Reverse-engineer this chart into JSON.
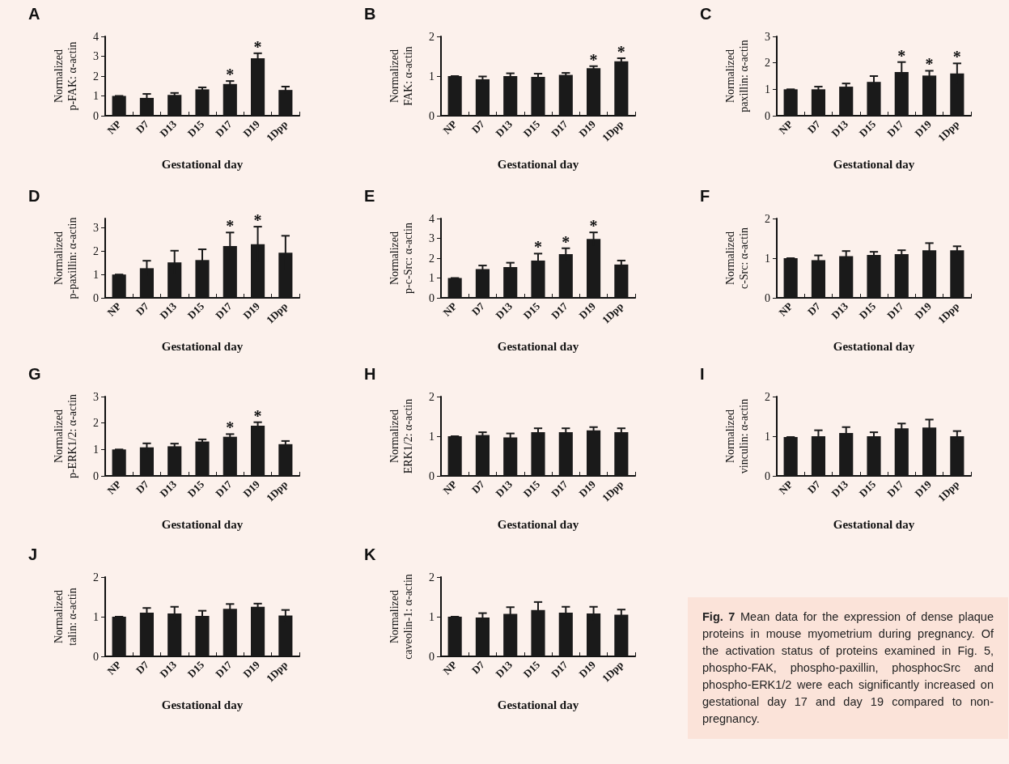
{
  "chart_data": [
    {
      "type": "bar",
      "title": "A",
      "ylabel": "Normalized\np-FAK: α-actin",
      "xlabel": "Gestational day",
      "categories": [
        "NP",
        "D7",
        "D13",
        "D15",
        "D17",
        "D19",
        "1Dpp"
      ],
      "values": [
        1,
        0.9,
        1.05,
        1.33,
        1.6,
        2.9,
        1.3
      ],
      "errors": [
        0,
        0.2,
        0.1,
        0.1,
        0.15,
        0.25,
        0.17
      ],
      "color": "#1a1a1a",
      "ylim": [
        0,
        4
      ],
      "yticks": [
        0,
        1,
        2,
        3,
        4
      ],
      "grid": false,
      "annotations": [
        {
          "text": "*",
          "x": "D17",
          "y": 1.75
        },
        {
          "text": "*",
          "x": "D19",
          "y": 3.15
        }
      ]
    },
    {
      "type": "bar",
      "title": "B",
      "ylabel": "Normalized\nFAK: α-actin",
      "xlabel": "Gestational day",
      "categories": [
        "NP",
        "D7",
        "D13",
        "D15",
        "D17",
        "D19",
        "1Dpp"
      ],
      "values": [
        1,
        0.92,
        1.0,
        0.98,
        1.03,
        1.2,
        1.37
      ],
      "errors": [
        0,
        0.07,
        0.07,
        0.08,
        0.05,
        0.05,
        0.08
      ],
      "color": "#1a1a1a",
      "ylim": [
        0,
        2
      ],
      "yticks": [
        0,
        1,
        2
      ],
      "grid": false,
      "annotations": [
        {
          "text": "*",
          "x": "D19",
          "y": 1.25
        },
        {
          "text": "*",
          "x": "1Dpp",
          "y": 1.45
        }
      ]
    },
    {
      "type": "bar",
      "title": "C",
      "ylabel": "Normalized\npaxillin: α-actin",
      "xlabel": "Gestational day",
      "categories": [
        "NP",
        "D7",
        "D13",
        "D15",
        "D17",
        "D19",
        "1Dpp"
      ],
      "values": [
        1,
        1.0,
        1.1,
        1.28,
        1.65,
        1.52,
        1.6
      ],
      "errors": [
        0,
        0.1,
        0.12,
        0.22,
        0.38,
        0.18,
        0.38
      ],
      "color": "#1a1a1a",
      "ylim": [
        0,
        3
      ],
      "yticks": [
        0,
        1,
        2,
        3
      ],
      "grid": false,
      "annotations": [
        {
          "text": "*",
          "x": "D17",
          "y": 2.03
        },
        {
          "text": "*",
          "x": "D19",
          "y": 1.7
        },
        {
          "text": "*",
          "x": "1Dpp",
          "y": 1.98
        }
      ]
    },
    {
      "type": "bar",
      "title": "D",
      "ylabel": "Normalized\np-paxillin: α-actin",
      "xlabel": "Gestational day",
      "categories": [
        "NP",
        "D7",
        "D13",
        "D15",
        "D17",
        "D19",
        "1Dpp"
      ],
      "values": [
        1,
        1.27,
        1.52,
        1.62,
        2.22,
        2.3,
        1.93
      ],
      "errors": [
        0,
        0.32,
        0.5,
        0.46,
        0.58,
        0.75,
        0.73
      ],
      "color": "#1a1a1a",
      "ylim": [
        0,
        3.4
      ],
      "yticks": [
        0,
        1,
        2,
        3
      ],
      "grid": false,
      "annotations": [
        {
          "text": "*",
          "x": "D17",
          "y": 2.8
        },
        {
          "text": "*",
          "x": "D19",
          "y": 3.05
        }
      ]
    },
    {
      "type": "bar",
      "title": "E",
      "ylabel": "Normalized\np-c-Src: α-actin",
      "xlabel": "Gestational day",
      "categories": [
        "NP",
        "D7",
        "D13",
        "D15",
        "D17",
        "D19",
        "1Dpp"
      ],
      "values": [
        1,
        1.45,
        1.55,
        1.88,
        2.2,
        2.97,
        1.68
      ],
      "errors": [
        0,
        0.18,
        0.22,
        0.35,
        0.3,
        0.33,
        0.2
      ],
      "color": "#1a1a1a",
      "ylim": [
        0,
        4
      ],
      "yticks": [
        0,
        1,
        2,
        3,
        4
      ],
      "grid": false,
      "annotations": [
        {
          "text": "*",
          "x": "D15",
          "y": 2.23
        },
        {
          "text": "*",
          "x": "D17",
          "y": 2.5
        },
        {
          "text": "*",
          "x": "D19",
          "y": 3.3
        }
      ]
    },
    {
      "type": "bar",
      "title": "F",
      "ylabel": "Normalized\nc-Src: α-actin",
      "xlabel": "Gestational day",
      "categories": [
        "NP",
        "D7",
        "D13",
        "D15",
        "D17",
        "D19",
        "1Dpp"
      ],
      "values": [
        1,
        0.95,
        1.05,
        1.08,
        1.1,
        1.2,
        1.2
      ],
      "errors": [
        0,
        0.12,
        0.13,
        0.08,
        0.1,
        0.18,
        0.1
      ],
      "color": "#1a1a1a",
      "ylim": [
        0,
        2
      ],
      "yticks": [
        0,
        1,
        2
      ],
      "grid": false
    },
    {
      "type": "bar",
      "title": "G",
      "ylabel": "Normalized\np-ERK1/2: α-actin",
      "xlabel": "Gestational day",
      "categories": [
        "NP",
        "D7",
        "D13",
        "D15",
        "D17",
        "D19",
        "1Dpp"
      ],
      "values": [
        1,
        1.08,
        1.12,
        1.3,
        1.48,
        1.9,
        1.2
      ],
      "errors": [
        0,
        0.15,
        0.1,
        0.08,
        0.1,
        0.13,
        0.12
      ],
      "color": "#1a1a1a",
      "ylim": [
        0,
        3
      ],
      "yticks": [
        0,
        1,
        2,
        3
      ],
      "grid": false,
      "annotations": [
        {
          "text": "*",
          "x": "D17",
          "y": 1.58
        },
        {
          "text": "*",
          "x": "D19",
          "y": 2.03
        }
      ]
    },
    {
      "type": "bar",
      "title": "H",
      "ylabel": "Normalized\nERK1/2: α-actin",
      "xlabel": "Gestational day",
      "categories": [
        "NP",
        "D7",
        "D13",
        "D15",
        "D17",
        "D19",
        "1Dpp"
      ],
      "values": [
        1,
        1.03,
        0.97,
        1.1,
        1.1,
        1.15,
        1.1
      ],
      "errors": [
        0,
        0.07,
        0.1,
        0.1,
        0.1,
        0.08,
        0.1
      ],
      "color": "#1a1a1a",
      "ylim": [
        0,
        2
      ],
      "yticks": [
        0,
        1,
        2
      ],
      "grid": false
    },
    {
      "type": "bar",
      "title": "I",
      "ylabel": "Normalized\nvinculin: α-actin",
      "xlabel": "Gestational day",
      "categories": [
        "NP",
        "D7",
        "D13",
        "D15",
        "D17",
        "D19",
        "1Dpp"
      ],
      "values": [
        0.98,
        1.0,
        1.08,
        1.0,
        1.2,
        1.22,
        1.0
      ],
      "errors": [
        0,
        0.15,
        0.15,
        0.1,
        0.12,
        0.2,
        0.13
      ],
      "color": "#1a1a1a",
      "ylim": [
        0,
        2
      ],
      "yticks": [
        0,
        1,
        2
      ],
      "grid": false
    },
    {
      "type": "bar",
      "title": "J",
      "ylabel": "Normalized\ntalin: α-actin",
      "xlabel": "Gestational day",
      "categories": [
        "NP",
        "D7",
        "D13",
        "D15",
        "D17",
        "D19",
        "1Dpp"
      ],
      "values": [
        1,
        1.1,
        1.08,
        1.02,
        1.2,
        1.25,
        1.03
      ],
      "errors": [
        0,
        0.12,
        0.17,
        0.13,
        0.12,
        0.08,
        0.14
      ],
      "color": "#1a1a1a",
      "ylim": [
        0,
        2
      ],
      "yticks": [
        0,
        1,
        2
      ],
      "grid": false
    },
    {
      "type": "bar",
      "title": "K",
      "ylabel": "Normalized\ncaveolin-1: α-actin",
      "xlabel": "Gestational day",
      "categories": [
        "NP",
        "D7",
        "D13",
        "D15",
        "D17",
        "D19",
        "1Dpp"
      ],
      "values": [
        1,
        0.98,
        1.07,
        1.17,
        1.1,
        1.08,
        1.05
      ],
      "errors": [
        0,
        0.11,
        0.17,
        0.2,
        0.15,
        0.17,
        0.13
      ],
      "color": "#1a1a1a",
      "ylim": [
        0,
        2
      ],
      "yticks": [
        0,
        1,
        2
      ],
      "grid": false
    },
    {
      "type": "other",
      "title": "Fig. 7",
      "annotations": [
        "Mean data for the expression of dense plaque proteins in mouse myometrium during pregnancy. Of the activation status of proteins examined in Fig. 5, phospho-FAK, phospho-paxillin, phosphocSrc and phospho-ERK1/2 were each significantly increased on gestational day 17 and day 19 compared to non-pregnancy."
      ]
    }
  ]
}
